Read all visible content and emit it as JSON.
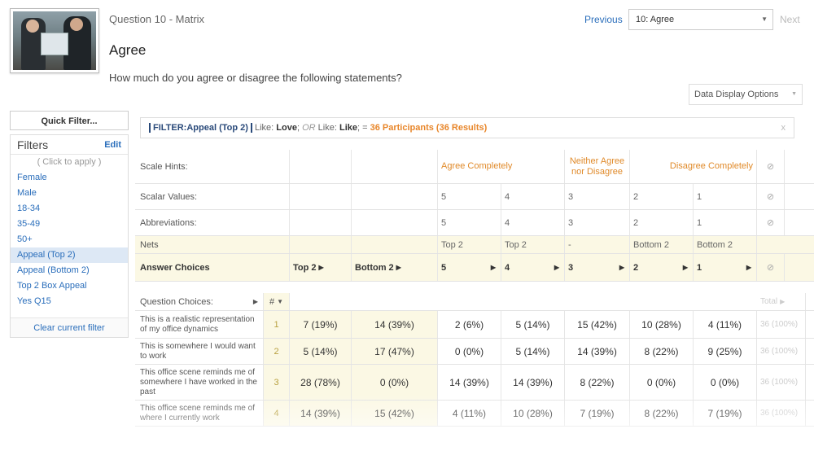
{
  "header": {
    "question_label": "Question 10 - Matrix",
    "title": "Agree",
    "question_text": "How much do you agree or disagree the following statements?",
    "previous": "Previous",
    "selected_question": "10: Agree",
    "next": "Next",
    "display_options": "Data Display Options"
  },
  "sidebar": {
    "quick_filter": "Quick Filter...",
    "filters_title": "Filters",
    "edit": "Edit",
    "items": [
      {
        "label": "( Click to apply )",
        "kind": "hint"
      },
      {
        "label": "Female",
        "kind": "link"
      },
      {
        "label": "Male",
        "kind": "link"
      },
      {
        "label": "18-34",
        "kind": "link"
      },
      {
        "label": "35-49",
        "kind": "link"
      },
      {
        "label": "50+",
        "kind": "link"
      },
      {
        "label": "Appeal (Top 2)",
        "kind": "active"
      },
      {
        "label": "Appeal (Bottom 2)",
        "kind": "link"
      },
      {
        "label": "Top 2 Box Appeal",
        "kind": "link"
      },
      {
        "label": "Yes Q15",
        "kind": "link"
      }
    ],
    "clear": "Clear current filter"
  },
  "filter_bar": {
    "tag": "FILTER:Appeal (Top 2)",
    "like1": "Like:",
    "love": "Love",
    "sep": ";",
    "or": "OR",
    "like2": "Like:",
    "like_val": "Like",
    "eq": "; =",
    "result": "36 Participants (36 Results)",
    "close": "x"
  },
  "matrix": {
    "scale_hints_label": "Scale Hints:",
    "scalar_label": "Scalar Values:",
    "abbrev_label": "Abbreviations:",
    "nets_label": "Nets",
    "answer_label": "Answer Choices",
    "hints": [
      "Agree Completely",
      "Neither Agree nor Disagree",
      "Disagree Completely"
    ],
    "scalars": [
      "5",
      "4",
      "3",
      "2",
      "1"
    ],
    "abbrevs": [
      "5",
      "4",
      "3",
      "2",
      "1"
    ],
    "nets": [
      "Top 2",
      "Top 2",
      "-",
      "Bottom 2",
      "Bottom 2"
    ],
    "net_cols": [
      "Top 2",
      "Bottom 2"
    ],
    "answers": [
      "5",
      "4",
      "3",
      "2",
      "1"
    ],
    "question_choices_label": "Question Choices:",
    "num_label": "#",
    "total_label": "Total",
    "rows": [
      {
        "text": "This is a realistic representation of my office dynamics",
        "num": "1",
        "top2": "7 (19%)",
        "bot2": "14 (39%)",
        "vals": [
          "2 (6%)",
          "5 (14%)",
          "15 (42%)",
          "10 (28%)",
          "4 (11%)"
        ],
        "total": "36 (100%)"
      },
      {
        "text": "This is somewhere I would want to work",
        "num": "2",
        "top2": "5 (14%)",
        "bot2": "17 (47%)",
        "vals": [
          "0 (0%)",
          "5 (14%)",
          "14 (39%)",
          "8 (22%)",
          "9 (25%)"
        ],
        "total": "36 (100%)"
      },
      {
        "text": "This office scene reminds me of somewhere I have worked in the past",
        "num": "3",
        "top2": "28 (78%)",
        "bot2": "0 (0%)",
        "vals": [
          "14 (39%)",
          "14 (39%)",
          "8 (22%)",
          "0 (0%)",
          "0 (0%)"
        ],
        "total": "36 (100%)"
      },
      {
        "text": "This office scene reminds me of where I currently work",
        "num": "4",
        "top2": "14 (39%)",
        "bot2": "15 (42%)",
        "vals": [
          "4 (11%)",
          "10 (28%)",
          "7 (19%)",
          "8 (22%)",
          "7 (19%)"
        ],
        "total": "36 (100%)"
      }
    ]
  }
}
